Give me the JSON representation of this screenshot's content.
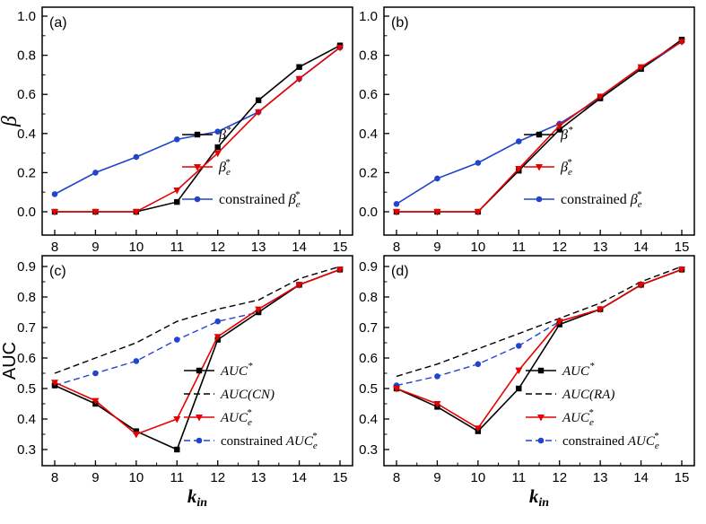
{
  "figure": {
    "background": "#ffffff",
    "axis_color": "#000000",
    "x_axis_label": "k_{in}",
    "row1_y_axis_label": "β",
    "row2_y_axis_label": "AUC",
    "series_colors": {
      "black": "#000000",
      "red": "#e60000",
      "blue": "#2244cc"
    }
  },
  "chart_data": [
    {
      "id": "a",
      "type": "line",
      "title": "(a)",
      "xlabel": "k_in",
      "ylabel": "β",
      "x": [
        8,
        9,
        10,
        11,
        12,
        13,
        14,
        15
      ],
      "xticks": [
        "8",
        "9",
        "10",
        "11",
        "12",
        "13",
        "14",
        "15"
      ],
      "ylim": [
        0.0,
        1.0
      ],
      "yticks": [
        "0.0",
        "0.2",
        "0.4",
        "0.6",
        "0.8",
        "1.0"
      ],
      "grid": false,
      "legend_position": "center-right",
      "series": [
        {
          "name": "β^{*}",
          "color": "#000000",
          "marker": "square",
          "line": "solid",
          "values": [
            0.0,
            0.0,
            0.0,
            0.05,
            0.33,
            0.57,
            0.74,
            0.85
          ]
        },
        {
          "name": "β_{e}^{*}",
          "color": "#e60000",
          "marker": "triangle-down",
          "line": "solid",
          "values": [
            0.0,
            0.0,
            0.0,
            0.11,
            0.3,
            0.51,
            0.68,
            0.84
          ]
        },
        {
          "name": "constrained β_{e}^{*}",
          "color": "#2244cc",
          "marker": "circle",
          "line": "solid",
          "values": [
            0.09,
            0.2,
            0.28,
            0.37,
            0.41,
            0.51,
            0.68,
            0.84
          ]
        }
      ]
    },
    {
      "id": "b",
      "type": "line",
      "title": "(b)",
      "xlabel": "k_in",
      "ylabel": "β",
      "x": [
        8,
        9,
        10,
        11,
        12,
        13,
        14,
        15
      ],
      "xticks": [
        "8",
        "9",
        "10",
        "11",
        "12",
        "13",
        "14",
        "15"
      ],
      "ylim": [
        0.0,
        1.0
      ],
      "yticks": [
        "0.0",
        "0.2",
        "0.4",
        "0.6",
        "0.8",
        "1.0"
      ],
      "grid": false,
      "legend_position": "center-right",
      "series": [
        {
          "name": "β^{*}",
          "color": "#000000",
          "marker": "square",
          "line": "solid",
          "values": [
            0.0,
            0.0,
            0.0,
            0.21,
            0.42,
            0.58,
            0.73,
            0.88
          ]
        },
        {
          "name": "β_{e}^{*}",
          "color": "#e60000",
          "marker": "triangle-down",
          "line": "solid",
          "values": [
            0.0,
            0.0,
            0.0,
            0.22,
            0.44,
            0.59,
            0.74,
            0.87
          ]
        },
        {
          "name": "constrained β_{e}^{*}",
          "color": "#2244cc",
          "marker": "circle",
          "line": "solid",
          "values": [
            0.04,
            0.17,
            0.25,
            0.36,
            0.45,
            0.58,
            0.73,
            0.87
          ]
        }
      ]
    },
    {
      "id": "c",
      "type": "line",
      "title": "(c)",
      "xlabel": "k_in",
      "ylabel": "AUC",
      "x": [
        8,
        9,
        10,
        11,
        12,
        13,
        14,
        15
      ],
      "xticks": [
        "8",
        "9",
        "10",
        "11",
        "12",
        "13",
        "14",
        "15"
      ],
      "ylim": [
        0.3,
        0.9
      ],
      "yticks": [
        "0.3",
        "0.4",
        "0.5",
        "0.6",
        "0.7",
        "0.8",
        "0.9"
      ],
      "grid": false,
      "legend_position": "bottom-right",
      "series": [
        {
          "name": "AUC^{*}",
          "color": "#000000",
          "marker": "square",
          "line": "solid",
          "values": [
            0.51,
            0.45,
            0.36,
            0.3,
            0.66,
            0.75,
            0.84,
            0.89
          ]
        },
        {
          "name": "AUC(CN)",
          "color": "#000000",
          "marker": "none",
          "line": "dashed",
          "values": [
            0.55,
            0.6,
            0.65,
            0.72,
            0.76,
            0.79,
            0.86,
            0.9
          ]
        },
        {
          "name": "AUC_{e}^{*}",
          "color": "#e60000",
          "marker": "triangle-down",
          "line": "solid",
          "values": [
            0.52,
            0.46,
            0.35,
            0.4,
            0.67,
            0.76,
            0.84,
            0.89
          ]
        },
        {
          "name": "constrained AUC_{e}^{*}",
          "color": "#2244cc",
          "marker": "circle",
          "line": "dashed",
          "values": [
            0.51,
            0.55,
            0.59,
            0.66,
            0.72,
            0.75,
            0.84,
            0.89
          ]
        }
      ]
    },
    {
      "id": "d",
      "type": "line",
      "title": "(d)",
      "xlabel": "k_in",
      "ylabel": "AUC",
      "x": [
        8,
        9,
        10,
        11,
        12,
        13,
        14,
        15
      ],
      "xticks": [
        "8",
        "9",
        "10",
        "11",
        "12",
        "13",
        "14",
        "15"
      ],
      "ylim": [
        0.3,
        0.9
      ],
      "yticks": [
        "0.3",
        "0.4",
        "0.5",
        "0.6",
        "0.7",
        "0.8",
        "0.9"
      ],
      "grid": false,
      "legend_position": "bottom-right",
      "series": [
        {
          "name": "AUC^{*}",
          "color": "#000000",
          "marker": "square",
          "line": "solid",
          "values": [
            0.5,
            0.44,
            0.36,
            0.5,
            0.71,
            0.76,
            0.84,
            0.89
          ]
        },
        {
          "name": "AUC(RA)",
          "color": "#000000",
          "marker": "none",
          "line": "dashed",
          "values": [
            0.54,
            0.58,
            0.63,
            0.68,
            0.73,
            0.78,
            0.85,
            0.9
          ]
        },
        {
          "name": "AUC_{e}^{*}",
          "color": "#e60000",
          "marker": "triangle-down",
          "line": "solid",
          "values": [
            0.5,
            0.45,
            0.37,
            0.56,
            0.72,
            0.76,
            0.84,
            0.89
          ]
        },
        {
          "name": "constrained AUC_{e}^{*}",
          "color": "#2244cc",
          "marker": "circle",
          "line": "dashed",
          "values": [
            0.51,
            0.54,
            0.58,
            0.64,
            0.72,
            0.76,
            0.84,
            0.89
          ]
        }
      ]
    }
  ]
}
